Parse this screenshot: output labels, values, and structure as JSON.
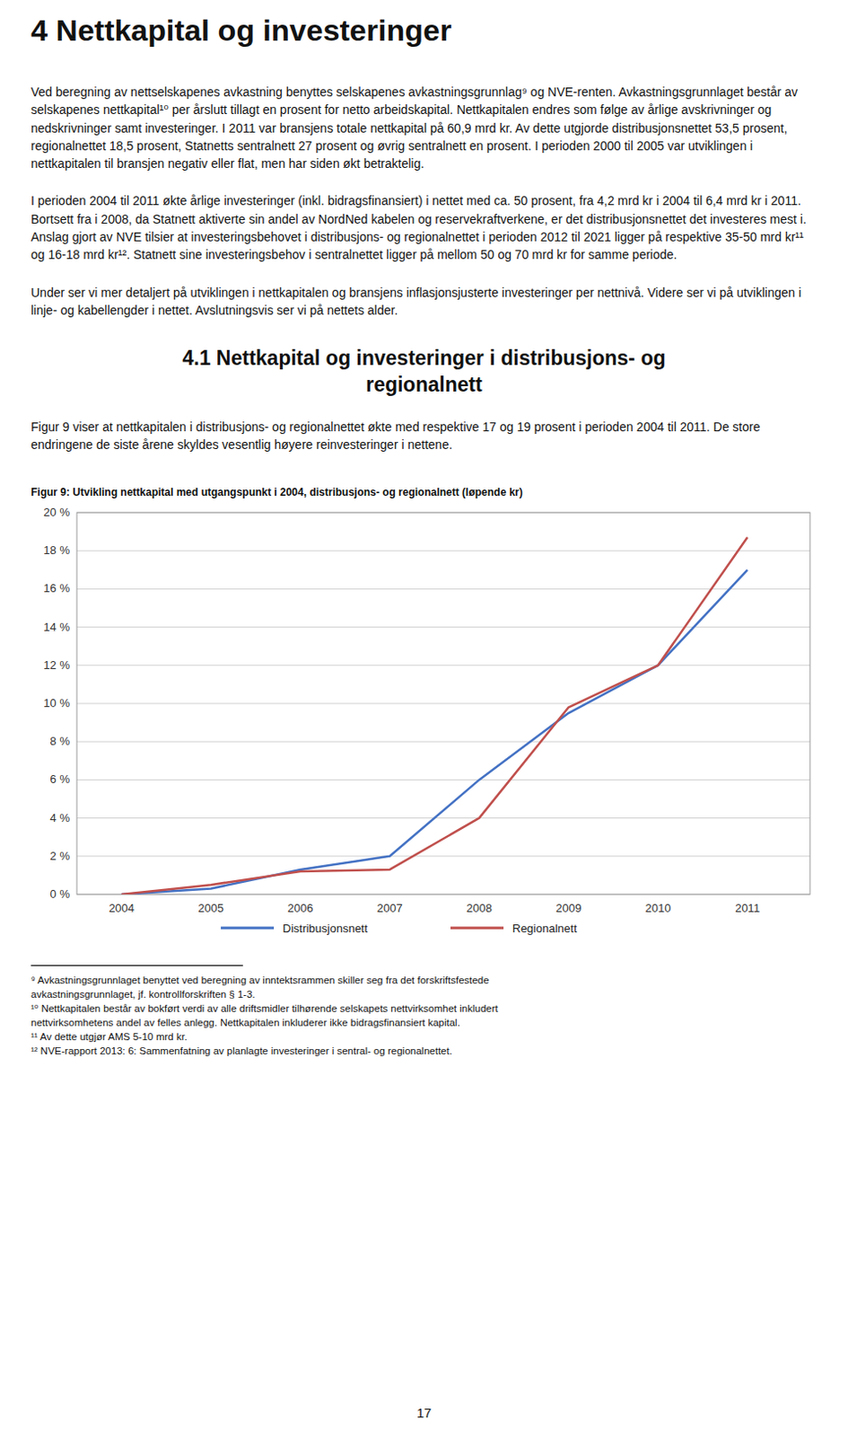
{
  "main_title": "4 Nettkapital og investeringer",
  "body": [
    "Ved beregning av nettselskapenes avkastning benyttes selskapenes avkastningsgrunnlag⁹ og NVE-renten. Avkastningsgrunnlaget består av selskapenes nettkapital¹⁰ per årslutt tillagt en prosent for netto arbeidskapital. Nettkapitalen endres som følge av årlige avskrivninger og nedskrivninger samt investeringer. I 2011 var bransjens totale nettkapital på 60,9 mrd kr. Av dette utgjorde distribusjonsnettet 53,5 prosent, regionalnettet 18,5 prosent, Statnetts sentralnett 27 prosent og øvrig sentralnett en prosent. I perioden 2000 til 2005 var utviklingen i nettkapitalen til bransjen negativ eller flat, men har siden økt betraktelig.",
    "I perioden 2004 til 2011 økte årlige investeringer (inkl. bidragsfinansiert) i nettet med ca. 50 prosent, fra 4,2 mrd kr i 2004 til 6,4 mrd kr i 2011. Bortsett fra i 2008, da Statnett aktiverte sin andel av NordNed kabelen og reservekraftverkene, er det distribusjonsnettet det investeres mest i. Anslag gjort av NVE tilsier at investeringsbehovet i distribusjons- og regionalnettet i perioden 2012 til 2021 ligger på respektive 35-50 mrd kr¹¹ og 16-18 mrd kr¹². Statnett sine investeringsbehov i sentralnettet ligger på mellom 50 og 70 mrd kr for samme periode.",
    "Under ser vi mer detaljert på utviklingen i nettkapitalen og bransjens inflasjonsjusterte investeringer per nettnivå. Videre ser vi på utviklingen i linje- og kabellengder i nettet. Avslutningsvis ser vi på nettets alder."
  ],
  "section_title": "4.1 Nettkapital og investeringer i distribusjons- og\nregionalnett",
  "section_body": "Figur 9 viser at nettkapitalen i distribusjons- og regionalnettet økte med respektive 17 og 19 prosent i perioden 2004 til 2011. De store endringene de siste årene skyldes vesentlig høyere reinvesteringer i nettene.",
  "footnotes": "⁹ Avkastningsgrunnlaget benyttet ved beregning av inntektsrammen skiller seg fra det forskriftsfestede\navkastningsgrunnlaget, jf. kontrollforskriften § 1-3.\n¹⁰ Nettkapitalen består av bokført verdi av alle driftsmidler tilhørende selskapets nettvirksomhet inkludert\nnettvirksomhetens andel av felles anlegg. Nettkapitalen inkluderer ikke bidragsfinansiert kapital.\n¹¹ Av dette utgjør AMS 5-10 mrd kr.\n¹² NVE-rapport 2013: 6: Sammenfatning av planlagte investeringer i sentral- og regionalnettet.",
  "page_number": "17",
  "chart_data": {
    "type": "line",
    "title": "Figur 9: Utvikling nettkapital med utgangspunkt i 2004, distribusjons- og regionalnett (løpende kr)",
    "x": [
      2004,
      2005,
      2006,
      2007,
      2008,
      2009,
      2010,
      2011
    ],
    "series": [
      {
        "name": "Distribusjonsnett",
        "color": "#4472C4",
        "values": [
          0.0,
          0.003,
          0.013,
          0.02,
          0.06,
          0.095,
          0.12,
          0.17
        ]
      },
      {
        "name": "Regionalnett",
        "color": "#C0504D",
        "values": [
          0.0,
          0.005,
          0.012,
          0.013,
          0.04,
          0.098,
          0.12,
          0.187
        ]
      }
    ],
    "xlim": [
      2003.5,
      2011.7
    ],
    "xticks": [
      2004,
      2005,
      2006,
      2007,
      2008,
      2009,
      2010,
      2011
    ],
    "ylim": [
      0,
      0.2
    ],
    "yticks": [
      {
        "value": 0.0,
        "label": "0 %"
      },
      {
        "value": 0.02,
        "label": "2 %"
      },
      {
        "value": 0.04,
        "label": "4 %"
      },
      {
        "value": 0.06,
        "label": "6 %"
      },
      {
        "value": 0.08,
        "label": "8 %"
      },
      {
        "value": 0.1,
        "label": "10 %"
      },
      {
        "value": 0.12,
        "label": "12 %"
      },
      {
        "value": 0.14,
        "label": "14 %"
      },
      {
        "value": 0.16,
        "label": "16 %"
      },
      {
        "value": 0.18,
        "label": "18 %"
      },
      {
        "value": 0.2,
        "label": "20 %"
      }
    ],
    "grid": true,
    "legend": "bottom"
  }
}
